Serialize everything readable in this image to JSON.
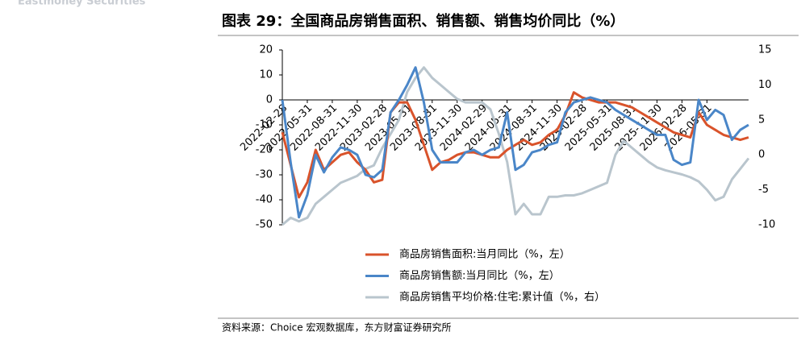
{
  "watermark": "Eastmoney Securities",
  "source": "资料来源：Choice 宏观数据库，东方财富证券研究所",
  "chart_data": {
    "type": "line",
    "title": "图表 29：全国商品房销售面积、销售额、销售均价同比（%）",
    "categories": [
      "2022-02-28",
      null,
      null,
      "2022-05-31",
      null,
      null,
      "2022-08-31",
      null,
      null,
      "2022-11-30",
      null,
      null,
      "2023-02-28",
      null,
      null,
      "2023-05-31",
      null,
      null,
      "2023-08-31",
      null,
      null,
      "2023-11-30",
      null,
      null,
      "2024-02-29",
      null,
      null,
      "2024-05-31",
      null,
      null,
      "2024-08-31",
      null,
      null,
      "2024-11-30",
      null,
      null,
      "2025-02-28",
      null,
      null,
      "2025-05-31",
      null,
      null,
      "2025-08-31",
      null,
      null,
      "2025-11-30",
      null,
      null,
      "2026-02-28",
      null,
      null,
      "2026-05-31",
      null,
      null,
      null,
      null,
      null
    ],
    "series": [
      {
        "name": "商品房销售面积:当月同比（%，左）",
        "color": "#d9532b",
        "axis": "y",
        "values": [
          -13,
          -26,
          -39,
          -33,
          -20,
          -28,
          -25,
          -22,
          -21,
          -25,
          -28,
          -33,
          -32,
          -5,
          -1,
          -1,
          -8,
          -18,
          -28,
          -25,
          -24,
          -22,
          -21,
          -21,
          -22,
          -23,
          -23,
          -20,
          -18,
          -16,
          -18,
          -17,
          -14,
          -12,
          -6,
          3,
          1,
          0,
          -1,
          -1,
          -1,
          -2,
          -3,
          -5,
          -7,
          -9,
          -11,
          -13,
          -14,
          -15,
          -5,
          -10,
          -12,
          -14,
          -15,
          -16,
          -15
        ]
      },
      {
        "name": "商品房销售额:当月同比（%，左）",
        "color": "#4a86c8",
        "axis": "y",
        "values": [
          0,
          -25,
          -47,
          -38,
          -22,
          -29,
          -23,
          -19,
          -20,
          -22,
          -30,
          -31,
          -28,
          -5,
          0,
          6,
          13,
          -1,
          -20,
          -25,
          -25,
          -25,
          -21,
          -20,
          -22,
          -20,
          -19,
          -5,
          -28,
          -26,
          -21,
          -20,
          -18,
          -17,
          -5,
          -1,
          0,
          1,
          0,
          -1,
          -4,
          -6,
          -8,
          -10,
          -12,
          -14,
          -14,
          -24,
          -26,
          -25,
          0,
          -8,
          -4,
          -6,
          -16,
          -12,
          -10
        ]
      },
      {
        "name": "商品房销售平均价格:住宅:累计值（%，右）",
        "color": "#b9c5cd",
        "axis": "y2",
        "values": [
          -10,
          -9,
          -9.5,
          -9,
          -7,
          -6,
          -5,
          -4,
          -3.5,
          -3,
          -2,
          -1.5,
          1,
          3,
          5,
          9,
          11,
          12.5,
          11,
          10,
          9,
          8,
          7.5,
          7.5,
          7.5,
          6.5,
          3,
          -1,
          -8.5,
          -7,
          -8.5,
          -8.5,
          -6,
          -6,
          -5.8,
          -5.8,
          -5.5,
          -5,
          -4.5,
          -4,
          0,
          2,
          1,
          0,
          -1,
          -1.8,
          -2.2,
          -2.5,
          -2.8,
          -3.2,
          -3.8,
          -5,
          -6.5,
          -6,
          -3.5,
          -2,
          -0.5
        ]
      }
    ],
    "ylim": [
      -50,
      20
    ],
    "yticks": [
      -50,
      -40,
      -30,
      -20,
      -10,
      0,
      10,
      20
    ],
    "y2lim": [
      -10,
      15
    ],
    "y2ticks": [
      -10,
      -5,
      0,
      5,
      10,
      15
    ]
  }
}
